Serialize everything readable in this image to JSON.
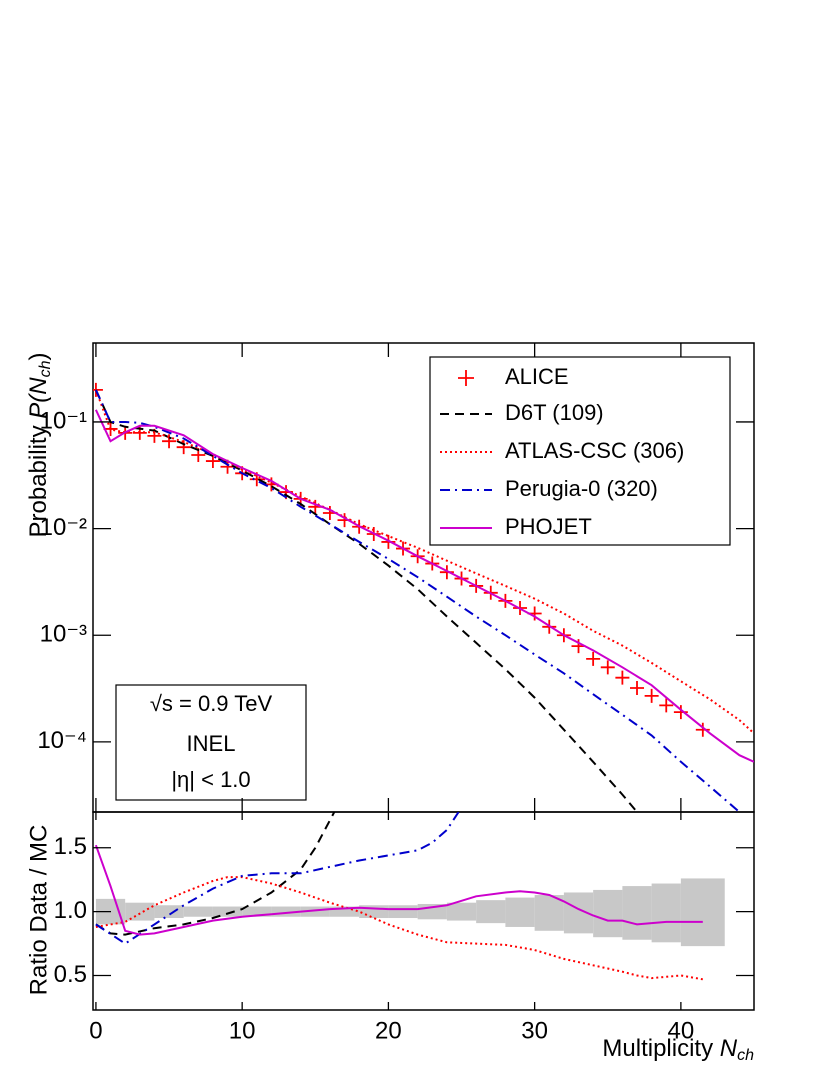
{
  "chart_data": [
    {
      "type": "line",
      "log_y": true,
      "ylabel": [
        "Probability ",
        "P(N",
        "ch",
        ")"
      ],
      "xlim": [
        -0.2,
        45
      ],
      "xticks": [
        0,
        10,
        20,
        30,
        40
      ],
      "ylim": [
        2.2e-05,
        0.55
      ],
      "yticks": [
        {
          "value": 0.0001,
          "label": "10⁻⁴"
        },
        {
          "value": 0.001,
          "label": "10⁻³"
        },
        {
          "value": 0.01,
          "label": "10⁻²"
        },
        {
          "value": 0.1,
          "label": "10⁻¹"
        }
      ],
      "legend": "upper right",
      "annotations": [
        "√s = 0.9 TeV",
        "INEL",
        "|η| < 1.0"
      ],
      "series": [
        {
          "name": "ALICE",
          "color": "#ff0000",
          "style": "markers",
          "x": [
            0,
            1,
            2,
            3,
            4,
            5,
            6,
            7,
            8,
            9,
            10,
            11,
            12,
            13,
            14,
            15,
            16,
            17,
            18,
            19,
            20,
            21,
            22,
            23,
            24,
            25,
            26,
            27,
            28,
            29,
            30,
            31,
            32,
            33,
            34,
            35,
            36,
            37,
            38,
            39,
            40,
            41.5
          ],
          "values": [
            0.2,
            0.086,
            0.079,
            0.079,
            0.074,
            0.066,
            0.058,
            0.049,
            0.043,
            0.038,
            0.033,
            0.029,
            0.026,
            0.022,
            0.019,
            0.016,
            0.014,
            0.012,
            0.0104,
            0.0089,
            0.0075,
            0.0065,
            0.0055,
            0.0047,
            0.0039,
            0.0034,
            0.0029,
            0.0025,
            0.0021,
            0.0018,
            0.0016,
            0.0012,
            0.001,
            0.00079,
            0.0006,
            0.0005,
            0.0004,
            0.00032,
            0.00027,
            0.00022,
            0.00019,
            0.00013
          ]
        },
        {
          "name": "D6T (109)",
          "color": "#000000",
          "style": "dashed",
          "x": [
            0,
            1,
            2,
            4,
            6,
            8,
            10,
            12,
            14,
            16,
            18,
            20,
            22,
            24,
            26,
            28,
            30,
            32,
            34,
            36,
            37
          ],
          "values": [
            0.2,
            0.1,
            0.09,
            0.083,
            0.062,
            0.048,
            0.035,
            0.025,
            0.017,
            0.011,
            0.0072,
            0.0045,
            0.0027,
            0.0015,
            0.00085,
            0.00048,
            0.00026,
            0.00013,
            6.5e-05,
            3.2e-05,
            2.2e-05
          ]
        },
        {
          "name": "ATLAS-CSC (306)",
          "color": "#ff0000",
          "style": "dotted",
          "x": [
            0,
            1,
            2,
            4,
            6,
            8,
            10,
            12,
            14,
            16,
            18,
            20,
            22,
            24,
            26,
            28,
            30,
            32,
            34,
            36,
            38,
            40,
            42,
            44,
            45
          ],
          "values": [
            0.2,
            0.085,
            0.08,
            0.08,
            0.065,
            0.05,
            0.036,
            0.027,
            0.02,
            0.015,
            0.011,
            0.0085,
            0.0066,
            0.005,
            0.0038,
            0.0029,
            0.0022,
            0.0016,
            0.0011,
            0.0008,
            0.00055,
            0.00037,
            0.00025,
            0.00016,
            0.00012
          ]
        },
        {
          "name": "Perugia-0 (320)",
          "color": "#0000cc",
          "style": "dashdot",
          "x": [
            0,
            1,
            2,
            3,
            4,
            6,
            8,
            10,
            12,
            14,
            16,
            18,
            20,
            22,
            24,
            26,
            28,
            30,
            32,
            34,
            36,
            38,
            40,
            42,
            44
          ],
          "values": [
            0.2,
            0.1,
            0.1,
            0.098,
            0.09,
            0.07,
            0.048,
            0.033,
            0.024,
            0.016,
            0.011,
            0.0075,
            0.0052,
            0.0035,
            0.0023,
            0.0015,
            0.001,
            0.00066,
            0.00044,
            0.00028,
            0.00018,
            0.000115,
            6.5e-05,
            3.8e-05,
            2.2e-05
          ]
        },
        {
          "name": "PHOJET",
          "color": "#cc00cc",
          "style": "solid",
          "x": [
            0,
            1,
            2,
            3,
            4,
            6,
            8,
            10,
            12,
            14,
            16,
            18,
            20,
            22,
            24,
            26,
            28,
            30,
            32,
            34,
            36,
            38,
            40,
            42,
            44,
            45
          ],
          "values": [
            0.13,
            0.066,
            0.08,
            0.092,
            0.092,
            0.075,
            0.05,
            0.037,
            0.028,
            0.019,
            0.015,
            0.0105,
            0.0077,
            0.0055,
            0.004,
            0.0029,
            0.0021,
            0.0015,
            0.001,
            0.00072,
            0.0005,
            0.00034,
            0.0002,
            0.00012,
            7.5e-05,
            6.5e-05
          ]
        }
      ]
    },
    {
      "type": "line",
      "ylabel": "Ratio Data / MC",
      "xlabel": [
        "Multiplicity ",
        "N",
        "ch"
      ],
      "xlim": [
        -0.2,
        45
      ],
      "xticks": [
        0,
        10,
        20,
        30,
        40
      ],
      "ylim": [
        0.23,
        1.78
      ],
      "yticks": [
        0.5,
        {
          "value": 1,
          "label": "1.0"
        },
        1.5
      ],
      "band": {
        "color": "#c8c8c8",
        "edges": [
          0,
          2,
          4,
          6,
          8,
          10,
          12,
          14,
          16,
          18,
          20,
          22,
          24,
          26,
          28,
          30,
          32,
          34,
          36,
          38,
          40,
          43
        ],
        "low": [
          0.9,
          0.93,
          0.95,
          0.96,
          0.96,
          0.96,
          0.96,
          0.96,
          0.96,
          0.95,
          0.95,
          0.94,
          0.93,
          0.91,
          0.88,
          0.85,
          0.83,
          0.8,
          0.78,
          0.76,
          0.73
        ],
        "high": [
          1.1,
          1.07,
          1.05,
          1.04,
          1.04,
          1.04,
          1.04,
          1.04,
          1.04,
          1.05,
          1.05,
          1.06,
          1.07,
          1.09,
          1.11,
          1.13,
          1.15,
          1.17,
          1.2,
          1.22,
          1.26
        ]
      },
      "series": [
        {
          "color": "#000000",
          "style": "dashed",
          "x": [
            0,
            1,
            2,
            4,
            6,
            8,
            10,
            12,
            14,
            15,
            16.3
          ],
          "values": [
            0.9,
            0.83,
            0.82,
            0.87,
            0.9,
            0.95,
            1.02,
            1.15,
            1.33,
            1.5,
            1.78
          ]
        },
        {
          "color": "#ff0000",
          "style": "dotted",
          "x": [
            0,
            2,
            4,
            6,
            8,
            9,
            10,
            12,
            14,
            16,
            18,
            20,
            22,
            24,
            26,
            28,
            30,
            32,
            34,
            36,
            37,
            38,
            40,
            41.5
          ],
          "values": [
            0.88,
            0.92,
            1.05,
            1.15,
            1.24,
            1.27,
            1.27,
            1.22,
            1.15,
            1.07,
            1.0,
            0.9,
            0.82,
            0.76,
            0.75,
            0.74,
            0.7,
            0.63,
            0.58,
            0.53,
            0.5,
            0.48,
            0.5,
            0.47
          ]
        },
        {
          "color": "#0000cc",
          "style": "dashdot",
          "x": [
            0,
            2,
            4,
            6,
            8,
            10,
            12,
            14,
            16,
            18,
            20,
            22,
            23,
            24,
            24.8
          ],
          "values": [
            0.9,
            0.75,
            0.9,
            1.05,
            1.18,
            1.28,
            1.3,
            1.3,
            1.35,
            1.4,
            1.44,
            1.48,
            1.54,
            1.64,
            1.78
          ]
        },
        {
          "color": "#cc00cc",
          "style": "solid",
          "x": [
            0,
            1,
            2,
            3,
            4,
            6,
            8,
            10,
            12,
            14,
            16,
            18,
            20,
            22,
            24,
            26,
            28,
            29,
            30,
            31,
            32,
            33,
            34,
            35,
            36,
            37,
            38,
            39,
            40,
            41.5
          ],
          "values": [
            1.52,
            1.2,
            0.85,
            0.82,
            0.83,
            0.88,
            0.93,
            0.96,
            0.98,
            1.0,
            1.02,
            1.03,
            1.02,
            1.02,
            1.05,
            1.12,
            1.15,
            1.16,
            1.15,
            1.13,
            1.08,
            1.02,
            0.97,
            0.93,
            0.93,
            0.9,
            0.91,
            0.92,
            0.92,
            0.92
          ]
        }
      ]
    }
  ]
}
